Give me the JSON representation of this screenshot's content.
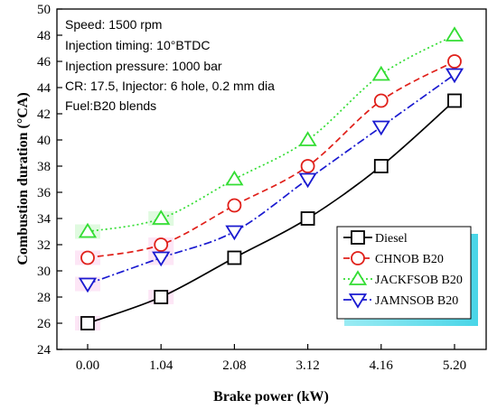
{
  "chart_data": {
    "type": "line",
    "xlabel": "Brake power (kW)",
    "ylabel": "Combustion duration (°CA)",
    "x": [
      0.0,
      1.04,
      2.08,
      3.12,
      4.16,
      5.2
    ],
    "x_tick_labels": [
      "0.00",
      "1.04",
      "2.08",
      "3.12",
      "4.16",
      "5.20"
    ],
    "ylim": [
      24,
      50
    ],
    "y_ticks": [
      24,
      26,
      28,
      30,
      32,
      34,
      36,
      38,
      40,
      42,
      44,
      46,
      48,
      50
    ],
    "annotations": [
      "Speed: 1500 rpm",
      "Injection timing: 10°BTDC",
      "Injection pressure: 1000 bar",
      "CR: 17.5, Injector: 6 hole, 0.2 mm dia",
      "Fuel:B20 blends"
    ],
    "legend_position": "bottom-right",
    "series": [
      {
        "name": "Diesel",
        "values": [
          26,
          28,
          31,
          34,
          38,
          43
        ],
        "color": "#000000",
        "marker": "square",
        "dash": "solid"
      },
      {
        "name": "CHNOB B20",
        "values": [
          31,
          32,
          35,
          38,
          43,
          46
        ],
        "color": "#e0201a",
        "marker": "circle",
        "dash": "dashed"
      },
      {
        "name": "JACKFSOB B20",
        "values": [
          33,
          34,
          37,
          40,
          45,
          48
        ],
        "color": "#33dd33",
        "marker": "triangle-up",
        "dash": "dotted"
      },
      {
        "name": "JAMNSOB B20",
        "values": [
          29,
          31,
          33,
          37,
          41,
          45
        ],
        "color": "#1a1ad0",
        "marker": "triangle-down",
        "dash": "dashdot"
      }
    ]
  }
}
